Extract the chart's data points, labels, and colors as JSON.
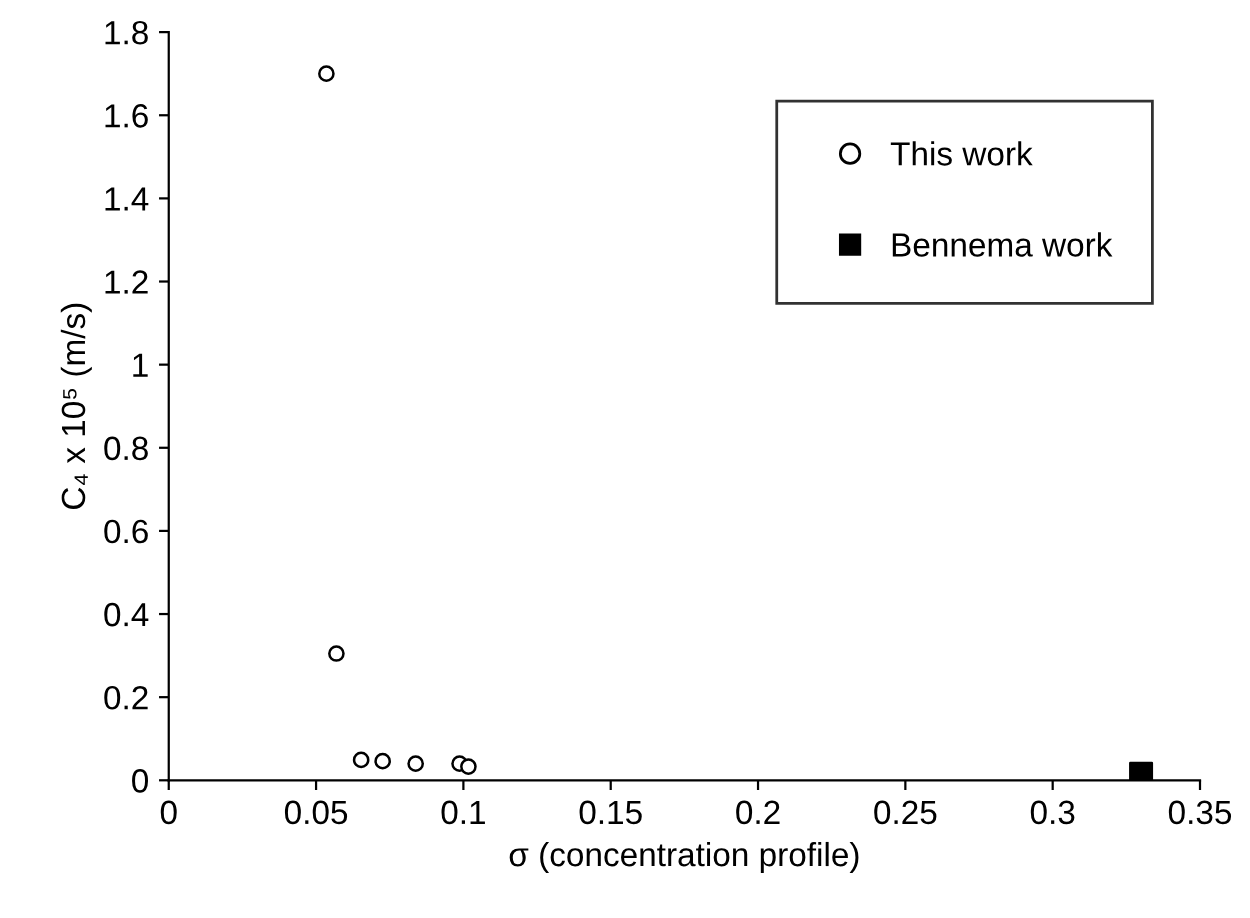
{
  "chart_data": {
    "type": "scatter",
    "xlabel": "σ (concentration profile)",
    "ylabel": "C₄ x 10⁵ (m/s)",
    "xlim": [
      0,
      0.35
    ],
    "xticks": [
      0,
      0.05,
      0.1,
      0.15,
      0.2,
      0.25,
      0.3,
      0.35
    ],
    "ylim": [
      0,
      1.8
    ],
    "yticks": [
      0,
      0.2,
      0.4,
      0.6,
      0.8,
      1,
      1.2,
      1.4,
      1.6,
      1.8
    ],
    "grid": false,
    "legend": "top right",
    "series": [
      {
        "name": "This work",
        "color": "#000000",
        "marker": "circle",
        "x": [
          0.0535,
          0.0569,
          0.0653,
          0.0726,
          0.0838,
          0.0987,
          0.1017
        ],
        "values": [
          1.7,
          0.305,
          0.049,
          0.046,
          0.04,
          0.04,
          0.033
        ]
      },
      {
        "name": "Bennema work",
        "color": "#000000",
        "marker": "square",
        "x": [
          0.33
        ],
        "values": [
          0.016
        ]
      }
    ]
  }
}
